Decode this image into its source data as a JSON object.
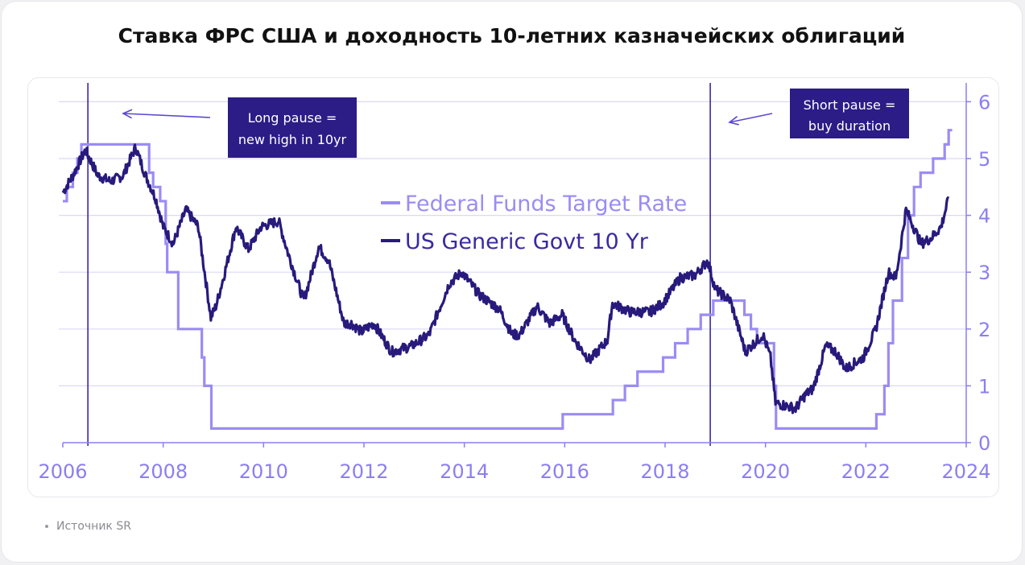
{
  "title": "Ставка ФРС США и доходность 10-летних казначейских облигаций",
  "source": "Источник SR",
  "chart_data": {
    "type": "line",
    "title": "Ставка ФРС США и доходность 10-летних казначейских облигаций",
    "xlabel": "",
    "ylabel": "",
    "xlim": [
      2006,
      2024
    ],
    "ylim": [
      0,
      6.3
    ],
    "x_ticks": [
      "2006",
      "2008",
      "2010",
      "2012",
      "2014",
      "2016",
      "2018",
      "2020",
      "2022",
      "2024"
    ],
    "y_ticks": [
      "0",
      "1",
      "2",
      "3",
      "4",
      "5",
      "6"
    ],
    "grid": "horizontal",
    "legend_position": "center",
    "colors": {
      "fed": "#9a8cf4",
      "govt": "#271a7c",
      "annotation_bg": "#2c1c86",
      "axis": "#8b7ff0"
    },
    "series": [
      {
        "name": "Federal Funds Target Rate",
        "step": true,
        "x": [
          2006.0,
          2006.08,
          2006.2,
          2006.29,
          2006.37,
          2006.5,
          2007.72,
          2007.8,
          2007.94,
          2008.05,
          2008.08,
          2008.3,
          2008.77,
          2008.82,
          2008.96,
          2015.96,
          2016.96,
          2017.2,
          2017.45,
          2017.96,
          2018.2,
          2018.45,
          2018.71,
          2018.96,
          2019.58,
          2019.71,
          2019.83,
          2020.17,
          2020.21,
          2022.21,
          2022.37,
          2022.45,
          2022.54,
          2022.72,
          2022.84,
          2022.96,
          2023.09,
          2023.34,
          2023.57,
          2023.65
        ],
        "values": [
          4.25,
          4.5,
          4.75,
          5.0,
          5.25,
          5.25,
          4.75,
          4.5,
          4.25,
          3.5,
          3.0,
          2.0,
          1.5,
          1.0,
          0.25,
          0.5,
          0.75,
          1.0,
          1.25,
          1.5,
          1.75,
          2.0,
          2.25,
          2.5,
          2.25,
          2.0,
          1.75,
          1.0,
          0.25,
          0.5,
          1.0,
          1.75,
          2.5,
          3.25,
          4.0,
          4.5,
          4.75,
          5.0,
          5.25,
          5.5
        ]
      },
      {
        "name": "US Generic Govt 10 Yr",
        "x": [
          2006.0,
          2006.2,
          2006.45,
          2006.7,
          2006.95,
          2007.2,
          2007.45,
          2007.65,
          2007.85,
          2008.0,
          2008.2,
          2008.45,
          2008.7,
          2008.95,
          2009.05,
          2009.2,
          2009.45,
          2009.7,
          2009.95,
          2010.3,
          2010.5,
          2010.8,
          2010.9,
          2011.1,
          2011.3,
          2011.6,
          2011.75,
          2011.95,
          2012.2,
          2012.55,
          2012.95,
          2013.3,
          2013.7,
          2013.95,
          2014.3,
          2014.7,
          2014.95,
          2015.1,
          2015.45,
          2015.7,
          2015.95,
          2016.2,
          2016.5,
          2016.85,
          2016.95,
          2017.3,
          2017.7,
          2017.95,
          2018.3,
          2018.6,
          2018.85,
          2019.0,
          2019.3,
          2019.6,
          2019.95,
          2020.1,
          2020.2,
          2020.4,
          2020.6,
          2020.8,
          2020.95,
          2021.2,
          2021.4,
          2021.6,
          2021.95,
          2022.2,
          2022.45,
          2022.6,
          2022.8,
          2022.95,
          2023.1,
          2023.3,
          2023.5,
          2023.65
        ],
        "values": [
          4.4,
          4.7,
          5.15,
          4.7,
          4.6,
          4.7,
          5.2,
          4.7,
          4.3,
          3.8,
          3.5,
          4.1,
          3.8,
          2.2,
          2.4,
          2.9,
          3.8,
          3.4,
          3.8,
          3.9,
          3.3,
          2.5,
          2.8,
          3.45,
          3.2,
          2.1,
          2.1,
          1.95,
          2.1,
          1.6,
          1.7,
          1.9,
          2.8,
          3.0,
          2.6,
          2.35,
          1.9,
          1.9,
          2.4,
          2.1,
          2.25,
          1.8,
          1.45,
          1.8,
          2.45,
          2.3,
          2.3,
          2.45,
          2.9,
          2.95,
          3.2,
          2.7,
          2.5,
          1.6,
          1.9,
          1.5,
          0.7,
          0.65,
          0.6,
          0.85,
          0.95,
          1.7,
          1.6,
          1.3,
          1.5,
          2.0,
          3.0,
          2.9,
          4.1,
          3.8,
          3.5,
          3.6,
          3.8,
          4.3
        ]
      }
    ],
    "markers": [
      2006.5,
      2018.9
    ],
    "annotations": [
      {
        "line1": "Long pause =",
        "line2": "new high in 10yr"
      },
      {
        "line1": "Short pause =",
        "line2": "buy duration"
      }
    ]
  }
}
